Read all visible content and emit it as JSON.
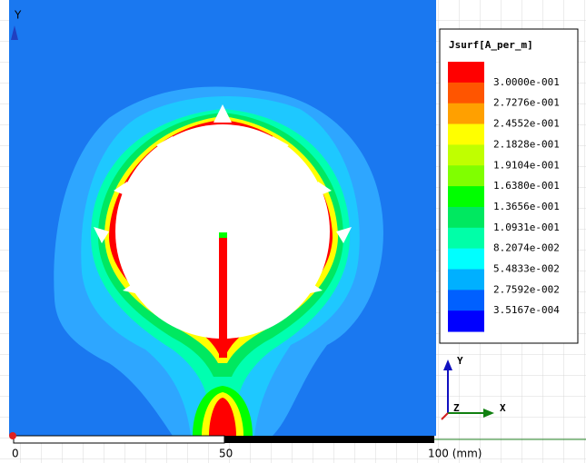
{
  "plot": {
    "axis_label": "Y"
  },
  "legend": {
    "title": "Jsurf[A_per_m]",
    "colors": [
      "#ff0000",
      "#ff5500",
      "#ffa000",
      "#ffff00",
      "#c0ff00",
      "#80ff00",
      "#00ff00",
      "#00e860",
      "#00ffa8",
      "#00ffff",
      "#00b0ff",
      "#0060ff",
      "#0000ff"
    ],
    "labels": [
      "3.0000e-001",
      "2.7276e-001",
      "2.4552e-001",
      "2.1828e-001",
      "1.9104e-001",
      "1.6380e-001",
      "1.3656e-001",
      "1.0931e-001",
      "8.2074e-002",
      "5.4833e-002",
      "2.7592e-002",
      "3.5167e-004"
    ]
  },
  "scale_bar": {
    "labels": [
      "0",
      "50",
      "100 (mm)"
    ]
  },
  "triad": {
    "x": "X",
    "y": "Y",
    "z": "Z"
  }
}
